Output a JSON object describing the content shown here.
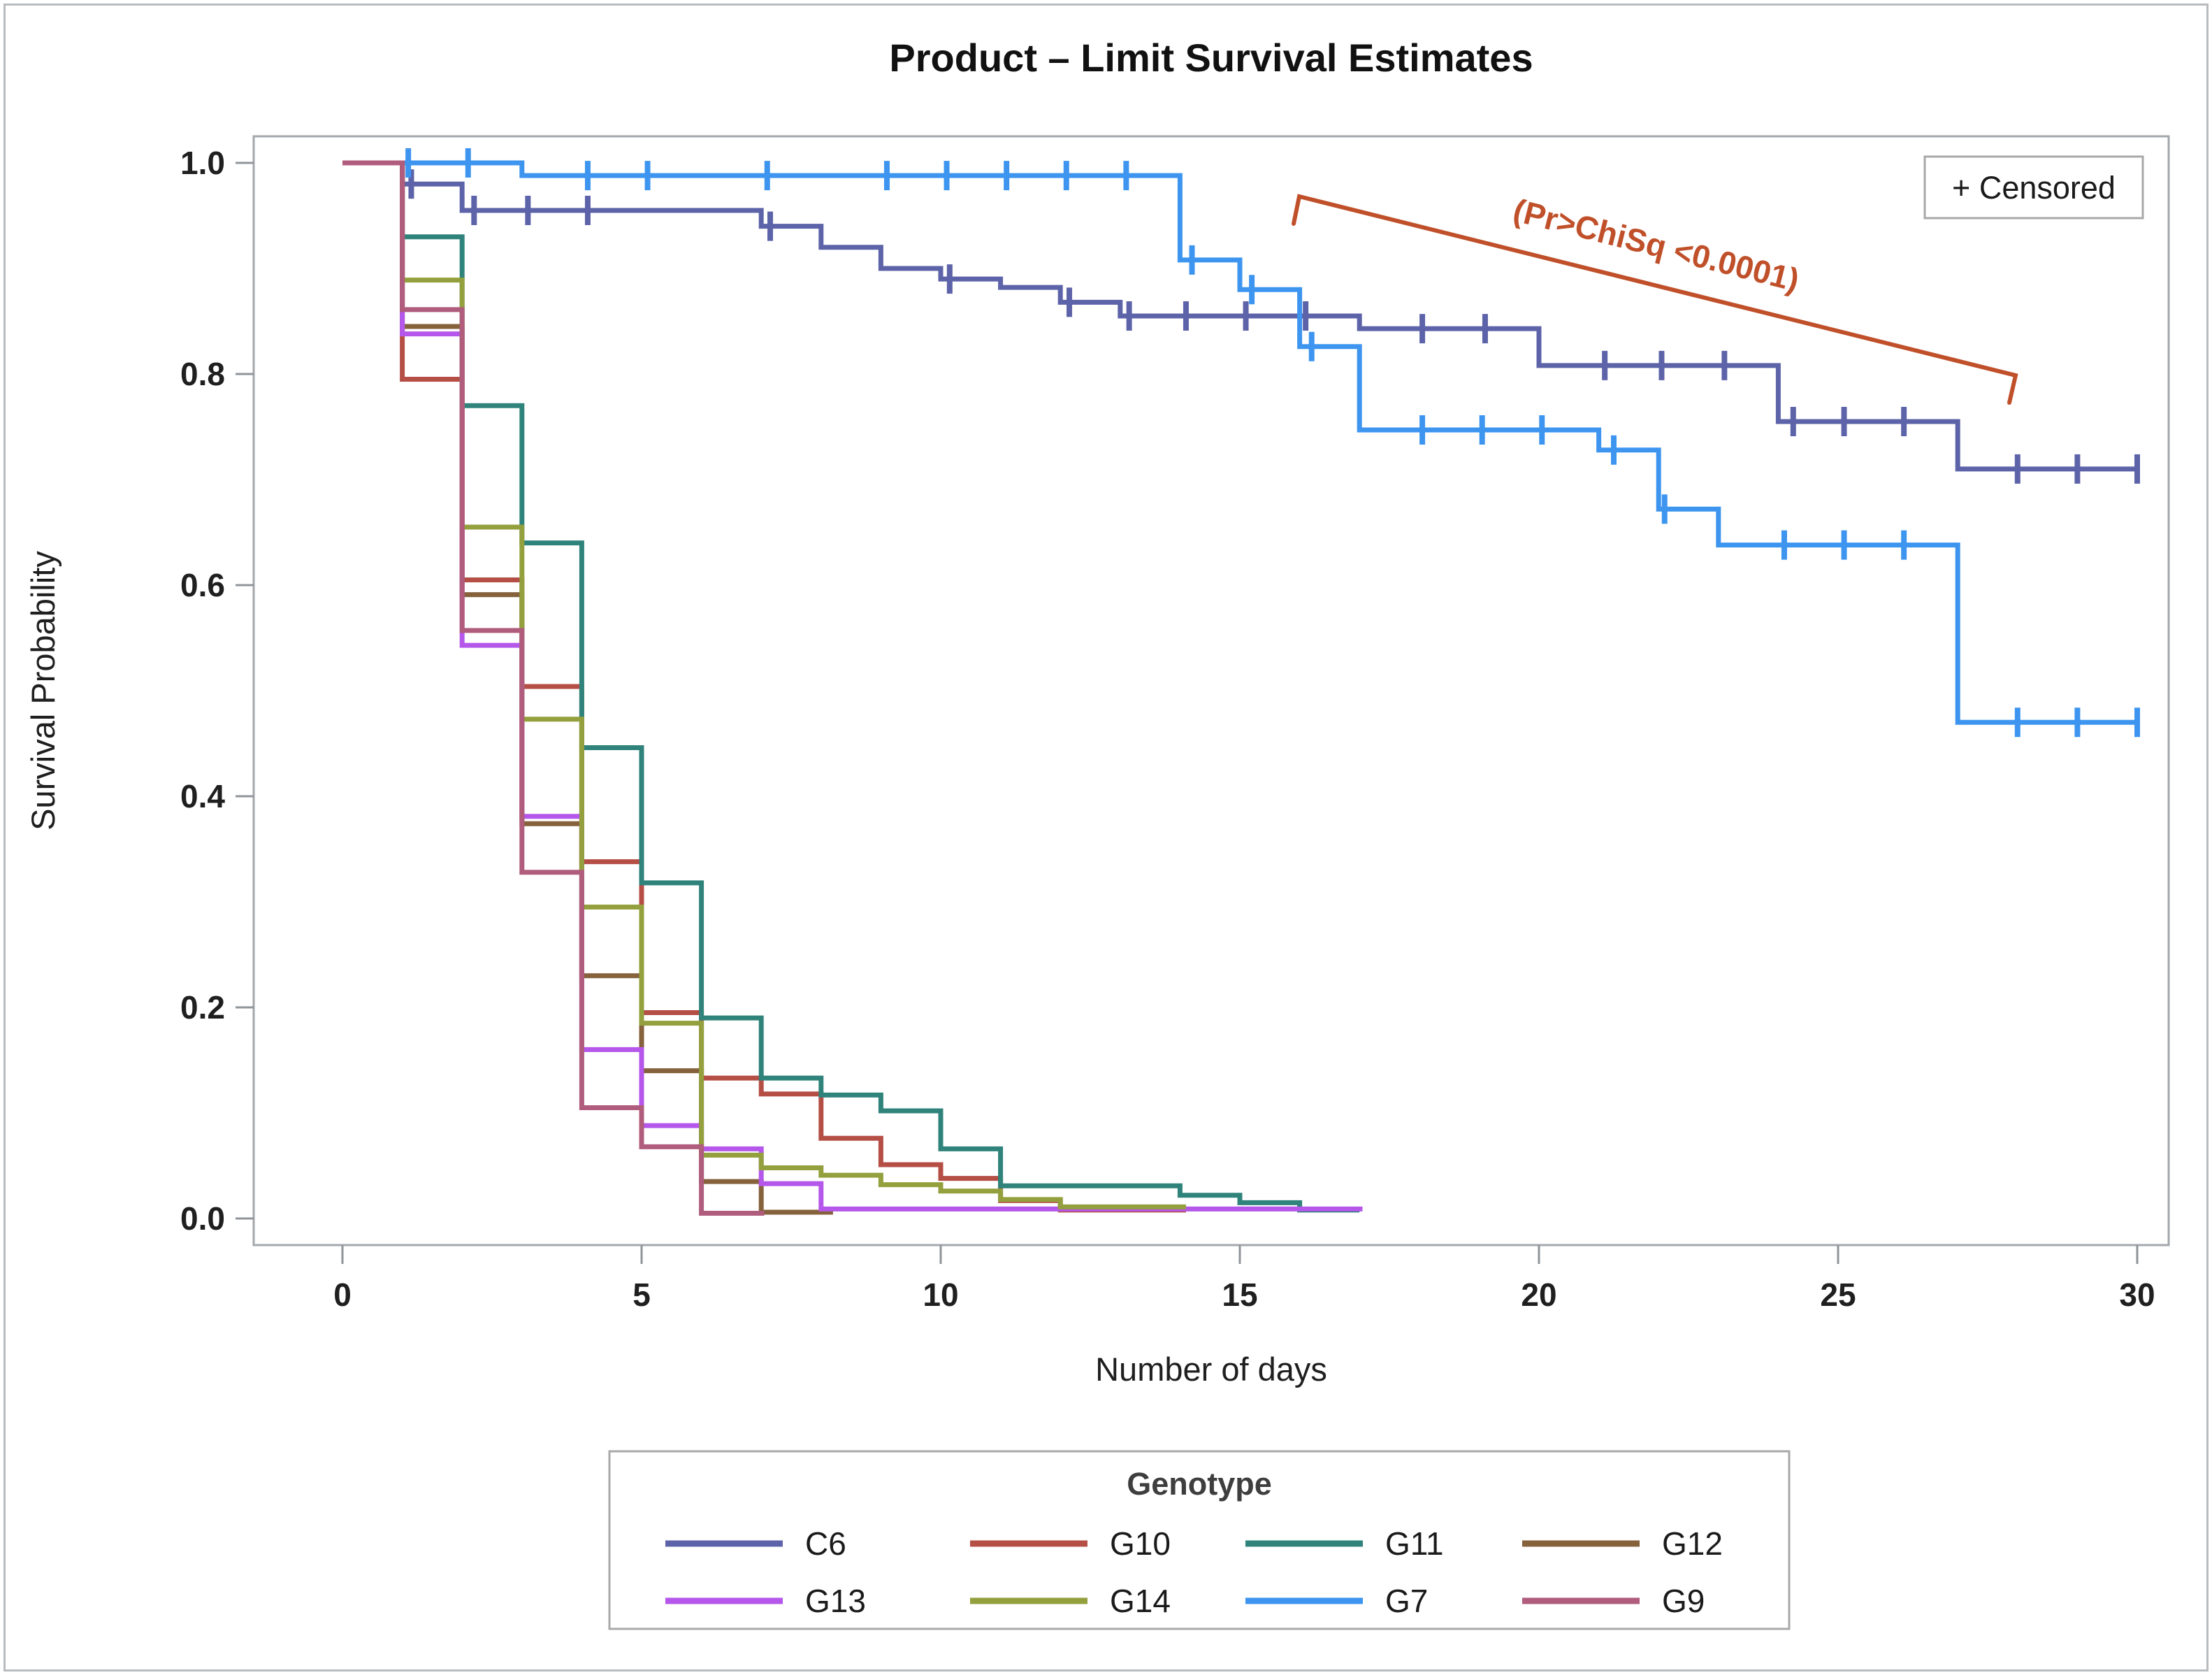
{
  "chart_data": {
    "type": "line",
    "subtype": "kaplan-meier-step",
    "title": "Product – Limit Survival Estimates",
    "xlabel": "Number of days",
    "ylabel": "Survival Probability",
    "xlim": [
      0,
      30
    ],
    "ylim": [
      0.0,
      1.0
    ],
    "xticks": [
      "0",
      "5",
      "10",
      "15",
      "20",
      "25",
      "30"
    ],
    "yticks": [
      "1.0",
      "0.8",
      "0.6",
      "0.4",
      "0.2",
      "0.0"
    ],
    "grid": "off",
    "legend_position": "bottom",
    "legend_title": "Genotype",
    "censored_label": "+ Censored",
    "annotation": {
      "text": "(Pr>ChiSq <0.0001)",
      "color": "#c0502a"
    },
    "frame_color": "#a3a7ab",
    "tick_color": "#8f9499",
    "series": [
      {
        "name": "C6",
        "color": "#5d63a8",
        "steps": [
          [
            0,
            1.0
          ],
          [
            1,
            0.98
          ],
          [
            2,
            0.955
          ],
          [
            7,
            0.94
          ],
          [
            8,
            0.92
          ],
          [
            9,
            0.9
          ],
          [
            10,
            0.89
          ],
          [
            11,
            0.882
          ],
          [
            12,
            0.868
          ],
          [
            13,
            0.855
          ],
          [
            17,
            0.843
          ],
          [
            20,
            0.808
          ],
          [
            24,
            0.755
          ],
          [
            27,
            0.71
          ]
        ],
        "end_day": 30,
        "censors": [
          [
            1.15,
            0.98
          ],
          [
            2.2,
            0.955
          ],
          [
            3.1,
            0.955
          ],
          [
            4.1,
            0.955
          ],
          [
            7.15,
            0.94
          ],
          [
            10.15,
            0.89
          ],
          [
            12.15,
            0.868
          ],
          [
            13.15,
            0.855
          ],
          [
            14.1,
            0.855
          ],
          [
            15.1,
            0.855
          ],
          [
            16.1,
            0.855
          ],
          [
            18.05,
            0.843
          ],
          [
            19.1,
            0.843
          ],
          [
            21.1,
            0.808
          ],
          [
            22.05,
            0.808
          ],
          [
            23.1,
            0.808
          ],
          [
            24.25,
            0.755
          ],
          [
            25.1,
            0.755
          ],
          [
            26.1,
            0.755
          ],
          [
            28,
            0.71
          ],
          [
            29,
            0.71
          ],
          [
            30,
            0.71
          ]
        ]
      },
      {
        "name": "G10",
        "color": "#b54f46",
        "steps": [
          [
            0,
            1.0
          ],
          [
            1,
            0.795
          ],
          [
            2,
            0.605
          ],
          [
            3,
            0.504
          ],
          [
            4,
            0.338
          ],
          [
            5,
            0.195
          ],
          [
            6,
            0.133
          ],
          [
            7,
            0.118
          ],
          [
            8,
            0.076
          ],
          [
            9,
            0.051
          ],
          [
            10,
            0.038
          ],
          [
            11,
            0.017
          ],
          [
            12,
            0.008
          ]
        ],
        "end_day": 14.1,
        "censors": []
      },
      {
        "name": "G11",
        "color": "#2f837b",
        "steps": [
          [
            0,
            1.0
          ],
          [
            1,
            0.93
          ],
          [
            2,
            0.77
          ],
          [
            3,
            0.64
          ],
          [
            4,
            0.446
          ],
          [
            5,
            0.318
          ],
          [
            6,
            0.19
          ],
          [
            7,
            0.133
          ],
          [
            8,
            0.117
          ],
          [
            9,
            0.102
          ],
          [
            10,
            0.066
          ],
          [
            11,
            0.031
          ],
          [
            14,
            0.022
          ],
          [
            15,
            0.015
          ],
          [
            16,
            0.008
          ]
        ],
        "end_day": 17,
        "censors": []
      },
      {
        "name": "G12",
        "color": "#85613c",
        "steps": [
          [
            0,
            1.0
          ],
          [
            1,
            0.845
          ],
          [
            2,
            0.591
          ],
          [
            3,
            0.374
          ],
          [
            4,
            0.23
          ],
          [
            5,
            0.14
          ],
          [
            6,
            0.035
          ],
          [
            7,
            0.006
          ]
        ],
        "end_day": 8.2,
        "censors": []
      },
      {
        "name": "G13",
        "color": "#b457ea",
        "steps": [
          [
            0,
            1.0
          ],
          [
            1,
            0.838
          ],
          [
            2,
            0.543
          ],
          [
            3,
            0.381
          ],
          [
            4,
            0.16
          ],
          [
            5,
            0.088
          ],
          [
            6,
            0.066
          ],
          [
            7,
            0.033
          ],
          [
            8,
            0.009
          ]
        ],
        "end_day": 17.05,
        "censors": []
      },
      {
        "name": "G14",
        "color": "#93a03d",
        "steps": [
          [
            0,
            1.0
          ],
          [
            1,
            0.889
          ],
          [
            2,
            0.655
          ],
          [
            3,
            0.473
          ],
          [
            4,
            0.295
          ],
          [
            5,
            0.185
          ],
          [
            6,
            0.06
          ],
          [
            7,
            0.048
          ],
          [
            8,
            0.041
          ],
          [
            9,
            0.032
          ],
          [
            10,
            0.026
          ],
          [
            11,
            0.018
          ],
          [
            12,
            0.011
          ]
        ],
        "end_day": 14.1,
        "censors": []
      },
      {
        "name": "G7",
        "color": "#3d95f0",
        "steps": [
          [
            0,
            1.0
          ],
          [
            3,
            0.988
          ],
          [
            14,
            0.908
          ],
          [
            15,
            0.88
          ],
          [
            16,
            0.826
          ],
          [
            17,
            0.747
          ],
          [
            21,
            0.728
          ],
          [
            22,
            0.672
          ],
          [
            23,
            0.638
          ],
          [
            27,
            0.47
          ]
        ],
        "end_day": 30,
        "censors": [
          [
            1.1,
            1.0
          ],
          [
            2.1,
            1.0
          ],
          [
            4.1,
            0.988
          ],
          [
            5.1,
            0.988
          ],
          [
            7.1,
            0.988
          ],
          [
            9.1,
            0.988
          ],
          [
            10.1,
            0.988
          ],
          [
            11.1,
            0.988
          ],
          [
            12.1,
            0.988
          ],
          [
            13.1,
            0.988
          ],
          [
            14.2,
            0.908
          ],
          [
            15.2,
            0.88
          ],
          [
            16.2,
            0.826
          ],
          [
            18.05,
            0.747
          ],
          [
            19.05,
            0.747
          ],
          [
            20.05,
            0.747
          ],
          [
            21.25,
            0.728
          ],
          [
            22.1,
            0.672
          ],
          [
            24.1,
            0.638
          ],
          [
            25.1,
            0.638
          ],
          [
            26.1,
            0.638
          ],
          [
            28,
            0.47
          ],
          [
            29,
            0.47
          ],
          [
            30,
            0.47
          ]
        ]
      },
      {
        "name": "G9",
        "color": "#b05c7c",
        "steps": [
          [
            0,
            1.0
          ],
          [
            1,
            0.861
          ],
          [
            2,
            0.557
          ],
          [
            3,
            0.328
          ],
          [
            4,
            0.105
          ],
          [
            5,
            0.068
          ],
          [
            6,
            0.005
          ]
        ],
        "end_day": 7.05,
        "censors": []
      }
    ]
  }
}
